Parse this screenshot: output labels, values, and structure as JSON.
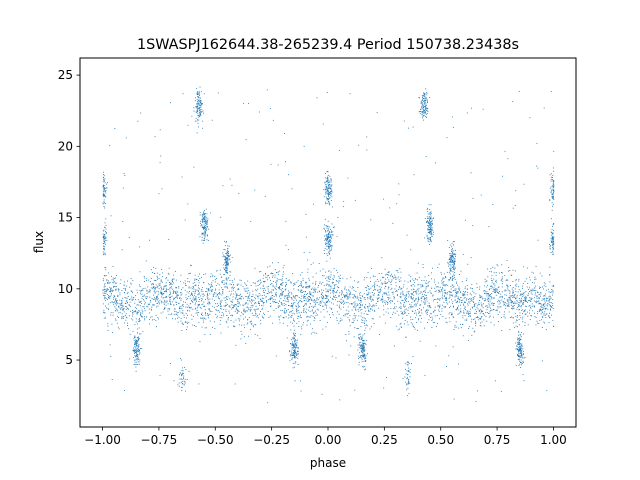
{
  "chart_data": {
    "type": "scatter",
    "title": "1SWASPJ162644.38-265239.4 Period 150738.23438s",
    "xlabel": "phase",
    "ylabel": "flux",
    "xlim": [
      -1.1,
      1.1
    ],
    "ylim": [
      0.3,
      26.2
    ],
    "grid": false,
    "point_color": "#1f77b4",
    "xticks": [
      -1.0,
      -0.75,
      -0.5,
      -0.25,
      0.0,
      0.25,
      0.5,
      0.75,
      1.0
    ],
    "xtick_labels": [
      "−1.00",
      "−0.75",
      "−0.50",
      "−0.25",
      "0.00",
      "0.25",
      "0.50",
      "0.75",
      "1.00"
    ],
    "yticks": [
      5,
      10,
      15,
      20,
      25
    ],
    "ytick_labels": [
      "5",
      "10",
      "15",
      "20",
      "25"
    ],
    "series": [
      {
        "values_profile": {
          "x": [
            0.0,
            0.05,
            0.1,
            0.15,
            0.2,
            0.25,
            0.3,
            0.35,
            0.4,
            0.45,
            0.5
          ],
          "y": [
            10.0,
            9.5,
            9.0,
            8.5,
            9.5,
            10.0,
            9.5,
            9.0,
            9.5,
            9.0,
            9.5
          ]
        },
        "clusters": [
          {
            "x": 0.425,
            "y": 23.0
          },
          {
            "x": -0.575,
            "y": 23.0
          },
          {
            "x": 0.35,
            "y": 3.9
          },
          {
            "x": -0.65,
            "y": 3.9
          },
          {
            "x": 0.0,
            "y": 17.0
          },
          {
            "x": -1.0,
            "y": 17.0
          },
          {
            "x": 1.0,
            "y": 17.0
          },
          {
            "x": 0.0,
            "y": 13.5
          },
          {
            "x": -1.0,
            "y": 13.5
          },
          {
            "x": 1.0,
            "y": 13.5
          },
          {
            "x": 0.45,
            "y": 14.5
          },
          {
            "x": -0.55,
            "y": 14.5
          },
          {
            "x": 0.55,
            "y": 12.0
          },
          {
            "x": -0.45,
            "y": 12.0
          },
          {
            "x": 0.15,
            "y": 5.8
          },
          {
            "x": -0.85,
            "y": 5.8
          },
          {
            "x": 0.85,
            "y": 5.8
          },
          {
            "x": -0.15,
            "y": 5.8
          }
        ]
      }
    ]
  }
}
